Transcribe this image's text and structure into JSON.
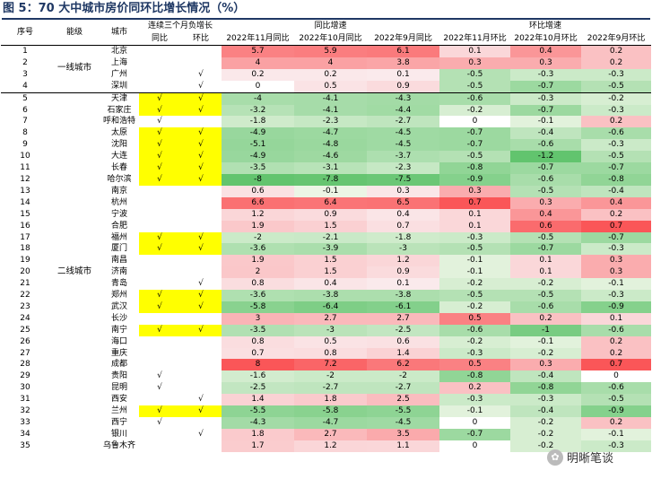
{
  "title": "图 5：70 大中城市房价同环比增长情况（%）",
  "headers": {
    "seq": "序号",
    "tier": "能级",
    "city": "城市",
    "neg3": "连续三个月负增长",
    "neg_yoy": "同比",
    "neg_mom": "环比",
    "yoy": "同比增速",
    "mom": "环比增速",
    "yoy_cols": [
      "2022年11月同比",
      "2022年10月同比",
      "2022年9月同比"
    ],
    "mom_cols": [
      "2022年11月环比",
      "2022年10月环比",
      "2022年9月环比"
    ]
  },
  "tiers": [
    "一线城市",
    "二线城市"
  ],
  "rows": [
    [
      "1",
      "北京",
      "",
      "",
      "5.7",
      "5.9",
      "6.1",
      "0.1",
      "0.4",
      "0.2"
    ],
    [
      "2",
      "上海",
      "",
      "",
      "4",
      "4",
      "3.8",
      "0.3",
      "0.3",
      "0.2"
    ],
    [
      "3",
      "广州",
      "",
      "√",
      "0.2",
      "0.2",
      "0.1",
      "-0.5",
      "-0.3",
      "-0.3"
    ],
    [
      "4",
      "深圳",
      "",
      "√",
      "0",
      "0.5",
      "0.9",
      "-0.5",
      "-0.7",
      "-0.5"
    ],
    [
      "5",
      "天津",
      "√",
      "√",
      "-4",
      "-4.1",
      "-4.3",
      "-0.6",
      "-0.3",
      "-0.2"
    ],
    [
      "6",
      "石家庄",
      "√",
      "√",
      "-3.2",
      "-4.1",
      "-4.4",
      "-0.2",
      "-0.7",
      "-0.3"
    ],
    [
      "7",
      "呼和浩特",
      "√",
      "",
      "-1.8",
      "-2.3",
      "-2.7",
      "0",
      "-0.1",
      "0.2"
    ],
    [
      "8",
      "太原",
      "√",
      "√",
      "-4.9",
      "-4.7",
      "-4.5",
      "-0.7",
      "-0.4",
      "-0.6"
    ],
    [
      "9",
      "沈阳",
      "√",
      "√",
      "-5.1",
      "-4.8",
      "-4.5",
      "-0.7",
      "-0.6",
      "-0.3"
    ],
    [
      "10",
      "大连",
      "√",
      "√",
      "-4.9",
      "-4.6",
      "-3.7",
      "-0.5",
      "-1.2",
      "-0.5"
    ],
    [
      "11",
      "长春",
      "√",
      "√",
      "-3.5",
      "-3.1",
      "-2.3",
      "-0.8",
      "-0.7",
      "-0.7"
    ],
    [
      "12",
      "哈尔滨",
      "√",
      "√",
      "-8",
      "-7.8",
      "-7.5",
      "-0.9",
      "-0.6",
      "-0.8"
    ],
    [
      "13",
      "南京",
      "",
      "",
      "0.6",
      "-0.1",
      "0.3",
      "0.3",
      "-0.5",
      "-0.4"
    ],
    [
      "14",
      "杭州",
      "",
      "",
      "6.6",
      "6.4",
      "6.5",
      "0.7",
      "0.3",
      "0.4"
    ],
    [
      "15",
      "宁波",
      "",
      "",
      "1.2",
      "0.9",
      "0.4",
      "0.1",
      "0.4",
      "0.2"
    ],
    [
      "16",
      "合肥",
      "",
      "",
      "1.9",
      "1.5",
      "0.7",
      "0.1",
      "0.6",
      "0.7"
    ],
    [
      "17",
      "福州",
      "√",
      "√",
      "-2",
      "-2.1",
      "-1.8",
      "-0.3",
      "-0.5",
      "-0.7"
    ],
    [
      "18",
      "厦门",
      "√",
      "√",
      "-3.6",
      "-3.9",
      "-3",
      "-0.5",
      "-0.7",
      "-0.3"
    ],
    [
      "19",
      "南昌",
      "",
      "",
      "1.9",
      "1.5",
      "1.2",
      "-0.1",
      "0.1",
      "0.3"
    ],
    [
      "20",
      "济南",
      "",
      "",
      "2",
      "1.5",
      "0.9",
      "-0.1",
      "0.1",
      "0.3"
    ],
    [
      "21",
      "青岛",
      "",
      "√",
      "0.8",
      "0.4",
      "0.1",
      "-0.2",
      "-0.2",
      "-0.1"
    ],
    [
      "22",
      "郑州",
      "√",
      "√",
      "-3.6",
      "-3.8",
      "-3.8",
      "-0.5",
      "-0.5",
      "-0.3"
    ],
    [
      "23",
      "武汉",
      "√",
      "√",
      "-5.8",
      "-6.4",
      "-6.1",
      "-0.2",
      "-0.6",
      "-0.9"
    ],
    [
      "24",
      "长沙",
      "",
      "",
      "3",
      "2.7",
      "2.7",
      "0.5",
      "0.2",
      "0.1"
    ],
    [
      "25",
      "南宁",
      "√",
      "√",
      "-3.5",
      "-3",
      "-2.5",
      "-0.6",
      "-1",
      "-0.6"
    ],
    [
      "26",
      "海口",
      "",
      "",
      "0.8",
      "0.5",
      "0.6",
      "-0.2",
      "-0.1",
      "0.2"
    ],
    [
      "27",
      "重庆",
      "",
      "",
      "0.7",
      "0.8",
      "1.4",
      "-0.3",
      "-0.2",
      "0.2"
    ],
    [
      "28",
      "成都",
      "",
      "",
      "8",
      "7.2",
      "6.2",
      "0.5",
      "0.3",
      "0.7"
    ],
    [
      "29",
      "贵阳",
      "√",
      "",
      "-1.6",
      "-2",
      "-2",
      "-0.8",
      "-0.4",
      "0"
    ],
    [
      "30",
      "昆明",
      "√",
      "",
      "-2.5",
      "-2.7",
      "-2.7",
      "0.2",
      "-0.8",
      "-0.6"
    ],
    [
      "31",
      "西安",
      "",
      "√",
      "1.4",
      "1.8",
      "2.5",
      "-0.3",
      "-0.3",
      "-0.5"
    ],
    [
      "32",
      "兰州",
      "√",
      "√",
      "-5.5",
      "-5.8",
      "-5.5",
      "-0.1",
      "-0.4",
      "-0.9"
    ],
    [
      "33",
      "西宁",
      "√",
      "",
      "-4.3",
      "-4.7",
      "-4.5",
      "0",
      "-0.2",
      "0.2"
    ],
    [
      "34",
      "银川",
      "",
      "√",
      "1.8",
      "2.7",
      "3.5",
      "-0.7",
      "-0.2",
      "-0.1"
    ],
    [
      "35",
      "乌鲁木齐",
      "",
      "",
      "1.7",
      "1.2",
      "1.1",
      "0",
      "-0.2",
      "-0.3"
    ]
  ],
  "watermark": "明晰笔谈"
}
